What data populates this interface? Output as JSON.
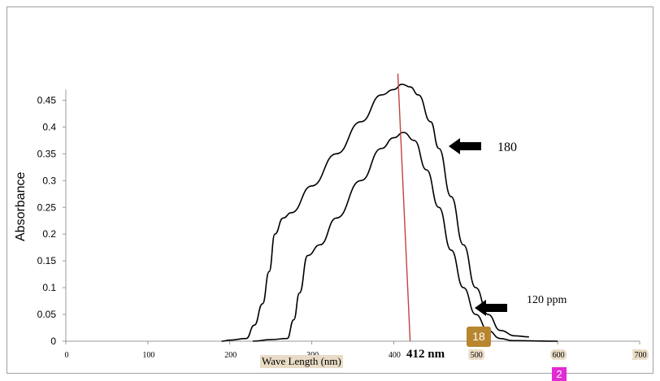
{
  "chart_data": {
    "type": "line",
    "ylabel": "Absorbance",
    "xlabel": "Wave Length (nm)",
    "xlim": [
      0,
      700
    ],
    "ylim": [
      0,
      0.5
    ],
    "x_ticks": [
      "0",
      "100",
      "200",
      "300",
      "400",
      "500",
      "600",
      "700"
    ],
    "y_ticks": [
      "0",
      "0.05",
      "0.1",
      "0.15",
      "0.2",
      "0.25",
      "0.3",
      "0.35",
      "0.4",
      "0.45"
    ],
    "series": [
      {
        "name": "180",
        "points": [
          [
            190,
            0
          ],
          [
            200,
            0.002
          ],
          [
            220,
            0.005
          ],
          [
            230,
            0.03
          ],
          [
            240,
            0.07
          ],
          [
            248,
            0.13
          ],
          [
            255,
            0.2
          ],
          [
            265,
            0.23
          ],
          [
            275,
            0.24
          ],
          [
            300,
            0.29
          ],
          [
            330,
            0.35
          ],
          [
            360,
            0.41
          ],
          [
            385,
            0.46
          ],
          [
            400,
            0.47
          ],
          [
            410,
            0.48
          ],
          [
            420,
            0.475
          ],
          [
            430,
            0.46
          ],
          [
            445,
            0.41
          ],
          [
            455,
            0.36
          ],
          [
            470,
            0.27
          ],
          [
            485,
            0.18
          ],
          [
            500,
            0.1
          ],
          [
            515,
            0.05
          ],
          [
            530,
            0.02
          ],
          [
            548,
            0.01
          ],
          [
            565,
            0.008
          ]
        ]
      },
      {
        "name": "120 ppm",
        "points": [
          [
            228,
            0
          ],
          [
            250,
            0.003
          ],
          [
            270,
            0.005
          ],
          [
            278,
            0.04
          ],
          [
            285,
            0.09
          ],
          [
            295,
            0.16
          ],
          [
            310,
            0.18
          ],
          [
            330,
            0.23
          ],
          [
            360,
            0.3
          ],
          [
            385,
            0.36
          ],
          [
            400,
            0.38
          ],
          [
            412,
            0.39
          ],
          [
            425,
            0.375
          ],
          [
            440,
            0.32
          ],
          [
            455,
            0.25
          ],
          [
            470,
            0.17
          ],
          [
            485,
            0.1
          ],
          [
            500,
            0.05
          ],
          [
            515,
            0.02
          ],
          [
            530,
            0.005
          ],
          [
            545,
            0.001
          ],
          [
            600,
            0
          ]
        ]
      }
    ],
    "annotations": {
      "peak_line": {
        "x_top": 405,
        "y_top": 0.5,
        "x_bottom": 420,
        "y_bottom": 0
      },
      "peak_label": "412 nm",
      "label_180": "180",
      "label_120": "120 ppm"
    },
    "overlay_badges": [
      "18",
      "2"
    ],
    "grid": false
  }
}
